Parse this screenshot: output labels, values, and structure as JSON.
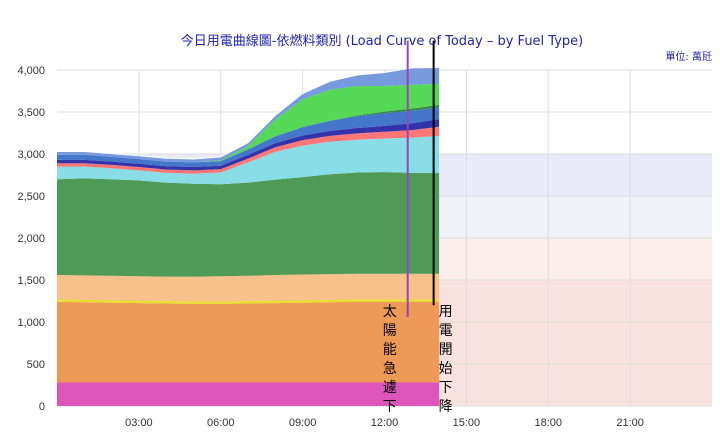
{
  "chart_data": {
    "type": "area",
    "title": "今日用電曲線圖-依燃料類別 (Load Curve of Today – by Fuel Type)",
    "unit_label": "單位: 萬瓩",
    "ylim": [
      0,
      4000
    ],
    "yticks": [
      "0",
      "500",
      "1,000",
      "1,500",
      "2,000",
      "2,500",
      "3,000",
      "3,500",
      "4,000"
    ],
    "ytick_values": [
      0,
      500,
      1000,
      1500,
      2000,
      2500,
      3000,
      3500,
      4000
    ],
    "xlim": [
      0,
      24
    ],
    "xticks": [
      "03:00",
      "06:00",
      "09:00",
      "12:00",
      "15:00",
      "18:00",
      "21:00"
    ],
    "xtick_values": [
      3,
      6,
      9,
      12,
      15,
      18,
      21
    ],
    "grid": true,
    "stacked": true,
    "bands": [
      {
        "from": 3000,
        "to": 4000,
        "color": "#ffffff"
      },
      {
        "from": 2500,
        "to": 3000,
        "color": "#e9ecf8"
      },
      {
        "from": 2000,
        "to": 2500,
        "color": "#f1f1fa"
      },
      {
        "from": 1500,
        "to": 2000,
        "color": "#fbeeec"
      },
      {
        "from": 0,
        "to": 1500,
        "color": "#f8e2e0"
      }
    ],
    "x": [
      0,
      1,
      2,
      3,
      4,
      5,
      6,
      7,
      8,
      9,
      10,
      11,
      12,
      13,
      14
    ],
    "series": [
      {
        "color": "#dd55bb",
        "values": [
          280,
          280,
          280,
          280,
          280,
          280,
          280,
          280,
          280,
          280,
          280,
          280,
          280,
          280,
          280
        ]
      },
      {
        "color": "#ee9955",
        "values": [
          960,
          955,
          950,
          945,
          940,
          935,
          935,
          940,
          945,
          950,
          955,
          960,
          960,
          960,
          960
        ]
      },
      {
        "color": "#e8e030",
        "values": [
          30,
          30,
          30,
          30,
          30,
          30,
          30,
          30,
          30,
          30,
          30,
          30,
          30,
          30,
          30
        ]
      },
      {
        "color": "#f8c08a",
        "values": [
          290,
          290,
          290,
          290,
          290,
          295,
          300,
          300,
          305,
          305,
          305,
          305,
          305,
          305,
          305
        ]
      },
      {
        "color": "#4e9a56",
        "values": [
          1140,
          1155,
          1150,
          1140,
          1120,
          1105,
          1095,
          1110,
          1135,
          1160,
          1190,
          1205,
          1210,
          1200,
          1200
        ]
      },
      {
        "color": "#88dde6",
        "values": [
          150,
          140,
          130,
          120,
          115,
          120,
          140,
          240,
          330,
          375,
          385,
          390,
          400,
          420,
          440
        ]
      },
      {
        "color": "#ff7777",
        "values": [
          40,
          40,
          40,
          40,
          40,
          40,
          40,
          45,
          55,
          65,
          70,
          75,
          80,
          90,
          110
        ]
      },
      {
        "color": "#3333aa",
        "values": [
          40,
          40,
          40,
          40,
          40,
          40,
          40,
          45,
          50,
          55,
          60,
          65,
          70,
          80,
          90
        ]
      },
      {
        "color": "#4477cc",
        "values": [
          60,
          60,
          55,
          55,
          55,
          55,
          55,
          65,
          80,
          100,
          120,
          140,
          150,
          150,
          140
        ]
      },
      {
        "color": "#338844",
        "values": [
          0,
          0,
          0,
          0,
          0,
          0,
          0,
          0,
          0,
          0,
          0,
          10,
          20,
          25,
          30
        ]
      },
      {
        "color": "#55d855",
        "values": [
          0,
          0,
          0,
          0,
          0,
          0,
          10,
          40,
          200,
          330,
          370,
          350,
          305,
          285,
          250
        ]
      },
      {
        "color": "#7799dd",
        "values": [
          40,
          40,
          40,
          40,
          40,
          40,
          40,
          40,
          50,
          70,
          100,
          130,
          160,
          200,
          195
        ]
      }
    ],
    "annotations": [
      {
        "text": "太陽能急遽下",
        "color": "#9944bb"
      },
      {
        "text": "用電開始下降",
        "color": "#000000"
      }
    ],
    "annotation_lines": [
      {
        "x": 12.85,
        "y_top": 4350,
        "y_bottom": 1060,
        "color": "#9944bb"
      },
      {
        "x": 13.8,
        "y_top": 4350,
        "y_bottom": 1200,
        "color": "#000000"
      }
    ]
  }
}
